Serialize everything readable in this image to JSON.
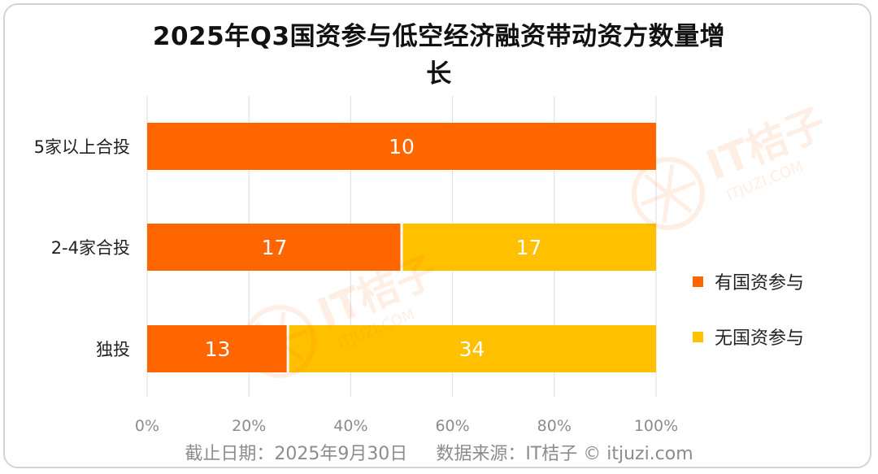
{
  "chart_data": {
    "type": "bar",
    "orientation": "horizontal",
    "stacked": "percent",
    "title": "2025年Q3国资参与低空经济融资带动资方数量增长",
    "title_lines": [
      "2025年Q3国资参与低空经济融资带动资方数量增",
      "长"
    ],
    "categories": [
      "5家以上合投",
      "2-4家合投",
      "独投"
    ],
    "series": [
      {
        "name": "有国资参与",
        "values": [
          10,
          17,
          13
        ],
        "color": "#ff6600"
      },
      {
        "name": "无国资参与",
        "values": [
          0,
          17,
          34
        ],
        "color": "#ffc000"
      }
    ],
    "x_ticks": [
      "0%",
      "20%",
      "40%",
      "60%",
      "80%",
      "100%"
    ],
    "xlim": [
      0,
      100
    ],
    "legend_position": "right",
    "grid": "vertical"
  },
  "footer": {
    "date": "截止日期：2025年9月30日",
    "source": "数据来源：IT桔子 © itjuzi.com"
  },
  "watermark": {
    "brand": "IT桔子",
    "domain": "ITJUZI.COM"
  }
}
